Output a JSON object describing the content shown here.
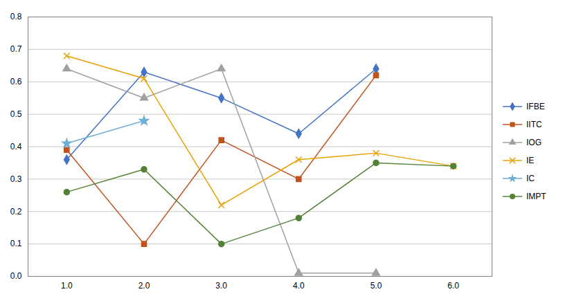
{
  "chart_data": {
    "type": "line",
    "x": [
      1,
      2,
      3,
      4,
      5,
      6
    ],
    "series": [
      {
        "name": "IFBE",
        "color": "#4472C4",
        "marker": "diamond",
        "values": [
          0.36,
          0.63,
          0.55,
          0.44,
          0.64,
          null
        ]
      },
      {
        "name": "IITC",
        "color": "#C0531E",
        "marker": "square",
        "values": [
          0.39,
          0.1,
          0.42,
          0.3,
          0.62,
          null
        ]
      },
      {
        "name": "IOG",
        "color": "#A0A0A0",
        "marker": "triangle",
        "values": [
          0.64,
          0.55,
          0.64,
          0.01,
          0.01,
          null
        ]
      },
      {
        "name": "IE",
        "color": "#E8A000",
        "marker": "times",
        "values": [
          0.68,
          0.61,
          0.22,
          0.36,
          0.38,
          0.34
        ]
      },
      {
        "name": "IC",
        "color": "#6BAED6",
        "marker": "star",
        "values": [
          0.41,
          0.48,
          null,
          null,
          null,
          null
        ]
      },
      {
        "name": "IMPT",
        "color": "#548235",
        "marker": "circle",
        "values": [
          0.26,
          0.33,
          0.1,
          0.18,
          0.35,
          0.34
        ]
      }
    ],
    "xlim": [
      0.5,
      6.5
    ],
    "xticks": [
      1,
      2,
      3,
      4,
      5,
      6
    ],
    "ylim": [
      0.0,
      0.8
    ],
    "yticks": [
      0,
      0.1,
      0.2,
      0.3,
      0.4,
      0.5,
      0.6,
      0.7,
      0.8
    ],
    "grid": true,
    "legend": "right"
  }
}
